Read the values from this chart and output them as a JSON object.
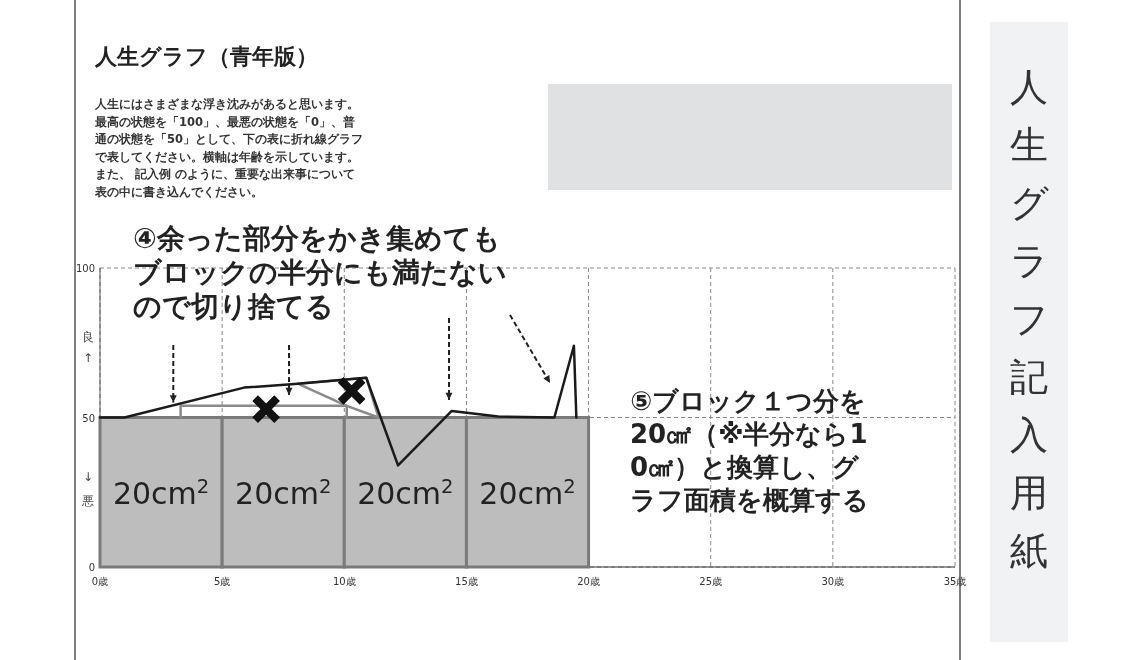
{
  "chart_data": {
    "type": "line",
    "title": "人生グラフ（青年版）",
    "subtitle": "人生にはさまざまな浮き沈みがあると思います。最高の状態を「100」、最悪の状態を「0」、普通の状態を「50」として、下の表に折れ線グラフで表してください。横軸は年齢を示しています。また、 記入例 のように、重要な出来事について表の中に書き込んでください。",
    "annotations": [
      {
        "text": "④余った部分をかき集めてもブロックの半分にも満たないので切り捨てる",
        "x": 3,
        "y": 55
      },
      "⑤ブロック１つ分を20㎠（※半分なら10㎠）と換算し、グラフ面積を概算する",
      "人生グラフ記入用紙",
      "良",
      "↑",
      "↓",
      "悪",
      "20cm$^{2}$",
      "20cm$^{2}$",
      "20cm$^{2}$",
      "20cm$^{2}$"
    ],
    "xlim": [
      0,
      35
    ],
    "ylim": [
      0,
      100
    ],
    "xticks": [
      {
        "value": 0,
        "label": "0歳"
      },
      {
        "value": 5,
        "label": "5歳"
      },
      {
        "value": 10,
        "label": "10歳"
      },
      {
        "value": 15,
        "label": "15歳"
      },
      {
        "value": 20,
        "label": "20歳"
      },
      {
        "value": 25,
        "label": "25歳"
      },
      {
        "value": 30,
        "label": "30歳"
      },
      {
        "value": 35,
        "label": "35歳"
      }
    ],
    "yticks": [
      0,
      50,
      100
    ],
    "grid": true,
    "series": [
      {
        "type": "bar",
        "color": "#bdbdbd",
        "x": [
          2.5,
          7.5,
          12.5,
          17.5
        ],
        "values": [
          50,
          50,
          50,
          50
        ]
      },
      {
        "type": "line",
        "color": "#8a8a8a",
        "x": [
          3.3,
          3.3,
          10.1,
          10.1
        ],
        "values": [
          50,
          53.9,
          53.9,
          50
        ]
      },
      {
        "type": "line",
        "color": "#8a8a8a",
        "x": [
          8.1,
          10.9,
          11.4
        ],
        "values": [
          61.3,
          63.3,
          50
        ]
      },
      {
        "type": "line",
        "color": "#8a8a8a",
        "x": [
          8.1,
          10.1,
          11.4
        ],
        "values": [
          61.3,
          53.9,
          50
        ]
      },
      {
        "color": "#1a1a1a",
        "x": [
          0,
          1,
          5.9,
          8.1,
          10.9,
          12.2,
          14.4,
          16.3,
          18.6,
          19.4,
          19.5
        ],
        "values": [
          50,
          50,
          60,
          61.3,
          63.3,
          34,
          52.2,
          50.3,
          50,
          74,
          50
        ]
      },
      {
        "type": "scatter",
        "color": "#111111",
        "marker": "cross",
        "x": [
          6.8,
          10.3
        ],
        "values": [
          52.8,
          58.9
        ]
      }
    ]
  }
}
